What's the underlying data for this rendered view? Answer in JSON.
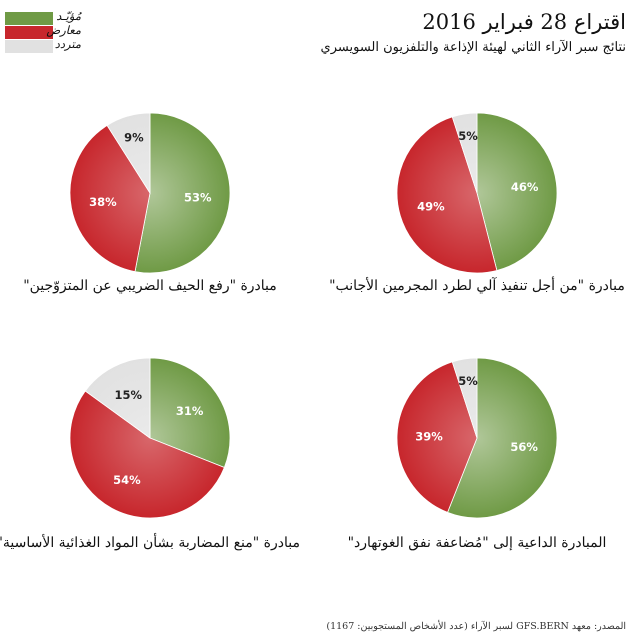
{
  "title": "اقتراع 28 فبراير 2016",
  "subtitle": "نتائج سبر الآراء الثاني لهيئة الإذاعة والتلفزيون السويسري",
  "legend": [
    {
      "label": "مُؤيّـد",
      "color": "#6f9a45"
    },
    {
      "label": "معارض",
      "color": "#c7262c"
    },
    {
      "label": "متردد",
      "color": "#e1e1e1"
    }
  ],
  "source": "المصدر: معهد GFS.BERN لسبر الآراء (عدد الأشخاص المستجوبين: 1167)",
  "chart_data": [
    {
      "type": "pie",
      "title": "مبادرة \"من أجل تنفيذ آلي لطرد المجرمين الأجانب\"",
      "labels": [
        "مُؤيّـد",
        "معارض",
        "متردد"
      ],
      "values": [
        46,
        49,
        5
      ],
      "value_labels": [
        "46%",
        "49%",
        "5%"
      ],
      "colors": [
        "#6f9a45",
        "#c7262c",
        "#e1e1e1"
      ]
    },
    {
      "type": "pie",
      "title": "مبادرة \"رفع الحيف الضريبي عن المتزوّجين\"",
      "labels": [
        "مُؤيّـد",
        "معارض",
        "متردد"
      ],
      "values": [
        53,
        38,
        9
      ],
      "value_labels": [
        "53%",
        "38%",
        "9%"
      ],
      "colors": [
        "#6f9a45",
        "#c7262c",
        "#e1e1e1"
      ]
    },
    {
      "type": "pie",
      "title": "المبادرة الداعية إلى \"مُضاعفة نفق الغوتهارد\"",
      "labels": [
        "مُؤيّـد",
        "معارض",
        "متردد"
      ],
      "values": [
        56,
        39,
        5
      ],
      "value_labels": [
        "56%",
        "39%",
        "5%"
      ],
      "colors": [
        "#6f9a45",
        "#c7262c",
        "#e1e1e1"
      ]
    },
    {
      "type": "pie",
      "title": "مبادرة \"منع المضاربة بشأن المواد الغذائية الأساسية\"",
      "labels": [
        "مُؤيّـد",
        "معارض",
        "متردد"
      ],
      "values": [
        31,
        54,
        15
      ],
      "value_labels": [
        "31%",
        "54%",
        "15%"
      ],
      "colors": [
        "#6f9a45",
        "#c7262c",
        "#e1e1e1"
      ]
    }
  ]
}
